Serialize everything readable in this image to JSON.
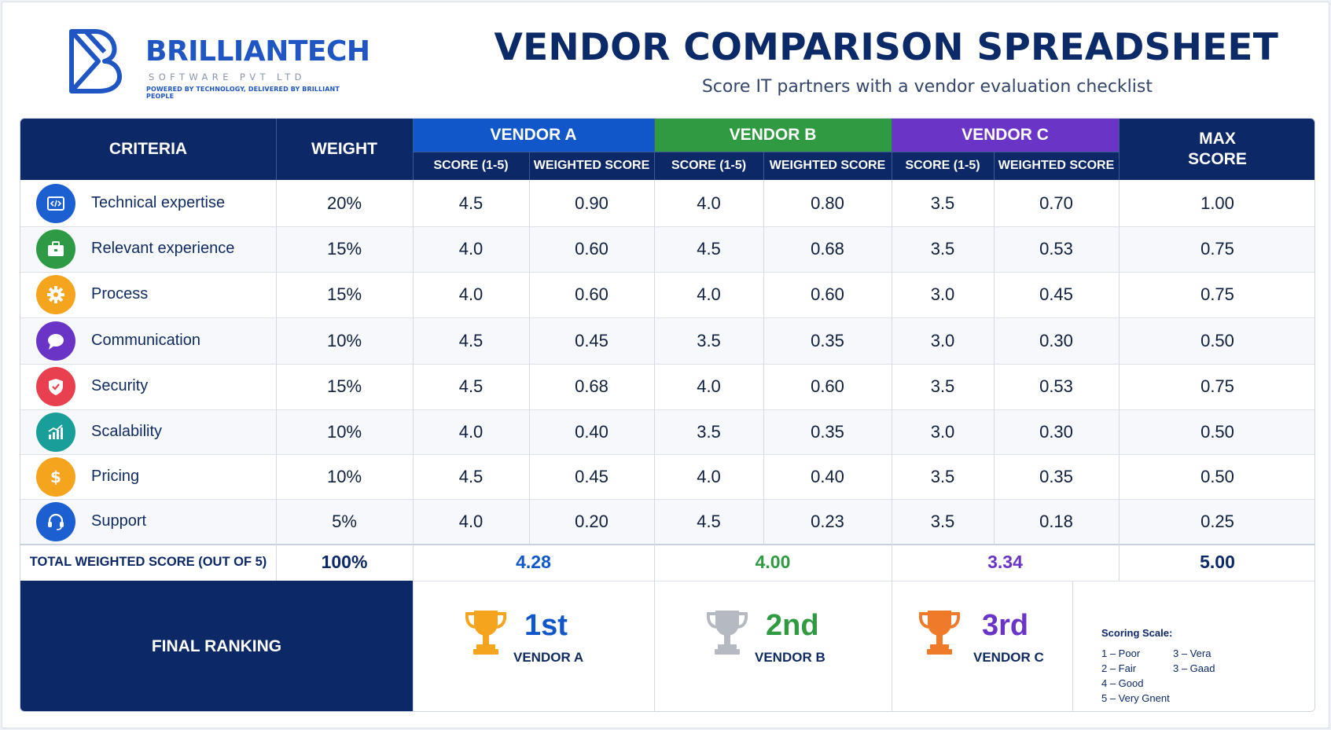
{
  "brand": {
    "name": "BRILLIANTECH",
    "sub": "SOFTWARE PVT LTD",
    "tagline": "POWERED BY TECHNOLOGY, DELIVERED BY BRILLIANT PEOPLE",
    "color": "#1f56c4"
  },
  "title": "VENDOR COMPARISON SPREADSHEET",
  "subtitle": "Score IT partners with a vendor evaluation checklist",
  "header": {
    "criteria": "CRITERIA",
    "weight": "WEIGHT",
    "vendor_a": "VENDOR A",
    "vendor_b": "VENDOR B",
    "vendor_c": "VENDOR C",
    "max_score_line1": "MAX",
    "max_score_line2": "SCORE",
    "score": "SCORE (1-5)",
    "weighted": "WEIGHTED SCORE"
  },
  "colors": {
    "navy": "#0c2866",
    "vendor_a": "#1257c9",
    "vendor_b": "#2f9a42",
    "vendor_c": "#6a35c6"
  },
  "rows": [
    {
      "label": "Technical expertise",
      "icon": "code-icon",
      "icon_color": "#1c5fd0",
      "weight": "20%",
      "a_score": "4.5",
      "a_weighted": "0.90",
      "b_score": "4.0",
      "b_weighted": "0.80",
      "c_score": "3.5",
      "c_weighted": "0.70",
      "max": "1.00"
    },
    {
      "label": "Relevant experience",
      "icon": "briefcase-icon",
      "icon_color": "#2e9a45",
      "weight": "15%",
      "a_score": "4.0",
      "a_weighted": "0.60",
      "b_score": "4.5",
      "b_weighted": "0.68",
      "c_score": "3.5",
      "c_weighted": "0.53",
      "max": "0.75"
    },
    {
      "label": "Process",
      "icon": "gear-icon",
      "icon_color": "#f5a41d",
      "weight": "15%",
      "a_score": "4.0",
      "a_weighted": "0.60",
      "b_score": "4.0",
      "b_weighted": "0.60",
      "c_score": "3.0",
      "c_weighted": "0.45",
      "max": "0.75"
    },
    {
      "label": "Communication",
      "icon": "chat-bubble-icon",
      "icon_color": "#6a35c6",
      "weight": "10%",
      "a_score": "4.5",
      "a_weighted": "0.45",
      "b_score": "3.5",
      "b_weighted": "0.35",
      "c_score": "3.0",
      "c_weighted": "0.30",
      "max": "0.50"
    },
    {
      "label": "Security",
      "icon": "shield-icon",
      "icon_color": "#e8404f",
      "weight": "15%",
      "a_score": "4.5",
      "a_weighted": "0.68",
      "b_score": "4.0",
      "b_weighted": "0.60",
      "c_score": "3.5",
      "c_weighted": "0.53",
      "max": "0.75"
    },
    {
      "label": "Scalability",
      "icon": "growth-chart-icon",
      "icon_color": "#1a9e9a",
      "weight": "10%",
      "a_score": "4.0",
      "a_weighted": "0.40",
      "b_score": "3.5",
      "b_weighted": "0.35",
      "c_score": "3.0",
      "c_weighted": "0.30",
      "max": "0.50"
    },
    {
      "label": "Pricing",
      "icon": "dollar-icon",
      "icon_color": "#f5a41d",
      "weight": "10%",
      "a_score": "4.5",
      "a_weighted": "0.45",
      "b_score": "4.0",
      "b_weighted": "0.40",
      "c_score": "3.5",
      "c_weighted": "0.35",
      "max": "0.50"
    },
    {
      "label": "Support",
      "icon": "headset-icon",
      "icon_color": "#1c5fd0",
      "weight": "5%",
      "a_score": "4.0",
      "a_weighted": "0.20",
      "b_score": "4.5",
      "b_weighted": "0.23",
      "c_score": "3.5",
      "c_weighted": "0.18",
      "max": "0.25"
    }
  ],
  "total": {
    "label": "TOTAL WEIGHTED SCORE (OUT OF 5)",
    "weight": "100%",
    "a": "4.28",
    "b": "4.00",
    "c": "3.34",
    "max": "5.00"
  },
  "ranking": {
    "label": "FINAL RANKING",
    "items": [
      {
        "place": "1st",
        "vendor": "VENDOR A",
        "icon": "gold-trophy-icon",
        "trophy_color": "#f5a41d",
        "text_color": "#1257c9"
      },
      {
        "place": "2nd",
        "vendor": "VENDOR B",
        "icon": "silver-trophy-icon",
        "trophy_color": "#b4b9c2",
        "text_color": "#2f9a42"
      },
      {
        "place": "3rd",
        "vendor": "VENDOR C",
        "icon": "bronze-trophy-icon",
        "trophy_color": "#ef7a2a",
        "text_color": "#6a35c6"
      }
    ]
  },
  "scoring_scale": {
    "title": "Scoring Scale:",
    "items": [
      "1 – Poor",
      "2 – Fair",
      "4 – Good",
      "5 – Very Gnent",
      "3 – Vera",
      "3 – Gaad"
    ]
  }
}
